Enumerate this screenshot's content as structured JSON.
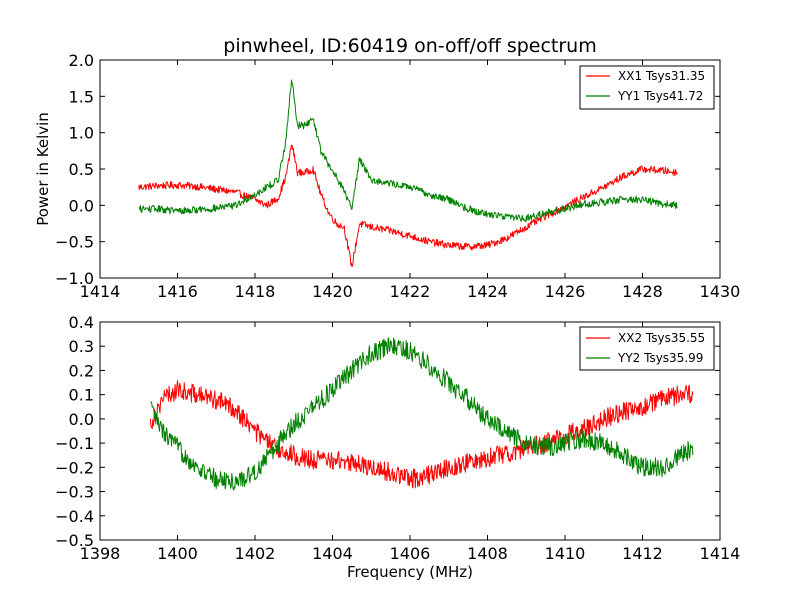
{
  "chart_data": [
    {
      "type": "line",
      "title": "pinwheel, ID:60419 on-off/off spectrum",
      "xlabel": "",
      "ylabel": "Power in Kelvin",
      "xlim": [
        1414,
        1430
      ],
      "ylim": [
        -1.0,
        2.0
      ],
      "xticks": [
        1414,
        1416,
        1418,
        1420,
        1422,
        1424,
        1426,
        1428,
        1430
      ],
      "yticks": [
        -1.0,
        -0.5,
        0.0,
        0.5,
        1.0,
        1.5,
        2.0
      ],
      "xtick_labels": [
        "1414",
        "1416",
        "1418",
        "1420",
        "1422",
        "1424",
        "1426",
        "1428",
        "1430"
      ],
      "ytick_labels": [
        "−1.0",
        "−0.5",
        "0.0",
        "0.5",
        "1.0",
        "1.5",
        "2.0"
      ],
      "legend_position": "upper right",
      "grid": false,
      "series": [
        {
          "name": "XX1 Tsys31.35",
          "color": "#ff0000",
          "x": [
            1415.0,
            1415.5,
            1416.0,
            1416.5,
            1417.0,
            1417.5,
            1418.0,
            1418.3,
            1418.6,
            1418.8,
            1418.95,
            1419.1,
            1419.3,
            1419.5,
            1419.7,
            1419.9,
            1420.1,
            1420.3,
            1420.5,
            1420.7,
            1421.0,
            1421.5,
            1422.0,
            1422.5,
            1423.0,
            1423.5,
            1424.0,
            1424.5,
            1425.0,
            1425.5,
            1426.0,
            1426.5,
            1427.0,
            1427.5,
            1428.0,
            1428.5,
            1428.9
          ],
          "y": [
            0.25,
            0.27,
            0.28,
            0.26,
            0.22,
            0.18,
            0.08,
            0.0,
            0.1,
            0.4,
            0.85,
            0.45,
            0.45,
            0.5,
            0.15,
            -0.1,
            -0.25,
            -0.3,
            -0.85,
            -0.25,
            -0.3,
            -0.35,
            -0.42,
            -0.5,
            -0.55,
            -0.57,
            -0.55,
            -0.45,
            -0.3,
            -0.15,
            -0.02,
            0.12,
            0.25,
            0.4,
            0.5,
            0.48,
            0.45
          ],
          "noise": 0.05
        },
        {
          "name": "YY1 Tsys41.72",
          "color": "#008000",
          "x": [
            1415.0,
            1415.5,
            1416.0,
            1416.5,
            1417.0,
            1417.5,
            1418.0,
            1418.3,
            1418.6,
            1418.8,
            1418.95,
            1419.1,
            1419.3,
            1419.5,
            1419.7,
            1419.9,
            1420.1,
            1420.3,
            1420.5,
            1420.7,
            1421.0,
            1421.5,
            1422.0,
            1422.5,
            1423.0,
            1423.5,
            1424.0,
            1424.5,
            1425.0,
            1425.5,
            1426.0,
            1426.5,
            1427.0,
            1427.5,
            1428.0,
            1428.5,
            1428.9
          ],
          "y": [
            -0.05,
            -0.05,
            -0.08,
            -0.06,
            -0.04,
            0.0,
            0.15,
            0.25,
            0.35,
            0.9,
            1.75,
            1.1,
            1.1,
            1.2,
            0.75,
            0.55,
            0.4,
            0.2,
            -0.05,
            0.65,
            0.35,
            0.3,
            0.25,
            0.15,
            0.08,
            -0.05,
            -0.12,
            -0.15,
            -0.18,
            -0.1,
            -0.05,
            0.02,
            0.05,
            0.08,
            0.08,
            0.02,
            0.0
          ],
          "noise": 0.05
        }
      ]
    },
    {
      "type": "line",
      "title": "",
      "xlabel": "Frequency (MHz)",
      "ylabel": "",
      "xlim": [
        1398,
        1414
      ],
      "ylim": [
        -0.5,
        0.4
      ],
      "xticks": [
        1398,
        1400,
        1402,
        1404,
        1406,
        1408,
        1410,
        1412,
        1414
      ],
      "yticks": [
        -0.5,
        -0.4,
        -0.3,
        -0.2,
        -0.1,
        0.0,
        0.1,
        0.2,
        0.3,
        0.4
      ],
      "xtick_labels": [
        "1398",
        "1400",
        "1402",
        "1404",
        "1406",
        "1408",
        "1410",
        "1412",
        "1414"
      ],
      "ytick_labels": [
        "−0.5",
        "−0.4",
        "−0.3",
        "−0.2",
        "−0.1",
        "0.0",
        "0.1",
        "0.2",
        "0.3",
        "0.4"
      ],
      "legend_position": "upper right",
      "grid": false,
      "series": [
        {
          "name": "XX2 Tsys35.55",
          "color": "#ff0000",
          "x": [
            1399.3,
            1399.6,
            1400.0,
            1400.5,
            1401.0,
            1401.5,
            1402.0,
            1402.5,
            1403.0,
            1403.5,
            1404.0,
            1404.5,
            1405.0,
            1405.5,
            1406.0,
            1406.5,
            1407.0,
            1407.5,
            1408.0,
            1408.5,
            1409.0,
            1409.5,
            1410.0,
            1410.5,
            1411.0,
            1411.5,
            1412.0,
            1412.5,
            1413.0,
            1413.3
          ],
          "y": [
            -0.02,
            0.08,
            0.12,
            0.1,
            0.08,
            0.04,
            -0.05,
            -0.12,
            -0.15,
            -0.17,
            -0.17,
            -0.18,
            -0.2,
            -0.22,
            -0.25,
            -0.23,
            -0.2,
            -0.18,
            -0.16,
            -0.14,
            -0.12,
            -0.1,
            -0.07,
            -0.04,
            0.0,
            0.03,
            0.05,
            0.08,
            0.1,
            0.1
          ],
          "noise": 0.04
        },
        {
          "name": "YY2 Tsys35.99",
          "color": "#008000",
          "x": [
            1399.3,
            1399.6,
            1400.0,
            1400.5,
            1401.0,
            1401.5,
            1402.0,
            1402.5,
            1403.0,
            1403.5,
            1404.0,
            1404.5,
            1405.0,
            1405.5,
            1406.0,
            1406.5,
            1407.0,
            1407.5,
            1408.0,
            1408.5,
            1409.0,
            1409.5,
            1410.0,
            1410.5,
            1411.0,
            1411.5,
            1412.0,
            1412.5,
            1413.0,
            1413.3
          ],
          "y": [
            0.05,
            -0.05,
            -0.12,
            -0.2,
            -0.25,
            -0.26,
            -0.22,
            -0.12,
            -0.02,
            0.05,
            0.12,
            0.2,
            0.27,
            0.3,
            0.28,
            0.22,
            0.15,
            0.08,
            0.0,
            -0.06,
            -0.1,
            -0.12,
            -0.1,
            -0.08,
            -0.1,
            -0.15,
            -0.2,
            -0.2,
            -0.15,
            -0.12
          ],
          "noise": 0.04
        }
      ]
    }
  ]
}
